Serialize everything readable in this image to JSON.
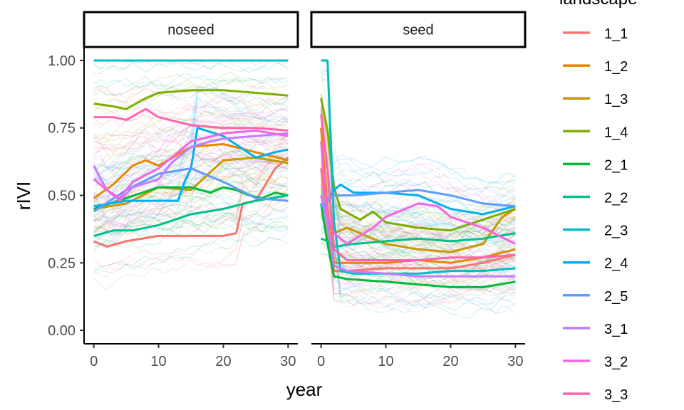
{
  "chart_data": {
    "type": "line",
    "facets": [
      "noseed",
      "seed"
    ],
    "xlabel": "year",
    "ylabel": "rIVI",
    "xlim": [
      -1.5,
      31.5
    ],
    "ylim": [
      -0.05,
      1.05
    ],
    "x_ticks": [
      0,
      10,
      20,
      30
    ],
    "y_ticks": [
      0.0,
      0.25,
      0.5,
      0.75,
      1.0
    ],
    "y_tick_labels": [
      "0.00",
      "0.25",
      "0.50",
      "0.75",
      "1.00"
    ],
    "x_tick_labels": [
      "0",
      "10",
      "20",
      "30"
    ],
    "grid": false,
    "legend_position": "right",
    "legend": {
      "title": "landscape",
      "entries": [
        {
          "name": "1_1",
          "color": "#F8766D"
        },
        {
          "name": "1_2",
          "color": "#E58700"
        },
        {
          "name": "1_3",
          "color": "#C99800"
        },
        {
          "name": "1_4",
          "color": "#7CAE00"
        },
        {
          "name": "2_1",
          "color": "#00BA38"
        },
        {
          "name": "2_2",
          "color": "#00C08B"
        },
        {
          "name": "2_3",
          "color": "#00BFC4"
        },
        {
          "name": "2_4",
          "color": "#00B0F6"
        },
        {
          "name": "2_5",
          "color": "#619CFF"
        },
        {
          "name": "3_1",
          "color": "#C77CFF"
        },
        {
          "name": "3_2",
          "color": "#F564E3"
        },
        {
          "name": "3_3",
          "color": "#FF64B0"
        }
      ]
    },
    "series": [
      {
        "name": "1_1",
        "facet": "noseed",
        "x": [
          0,
          2,
          5,
          10,
          15,
          20,
          22,
          23,
          25,
          28,
          30
        ],
        "y": [
          0.33,
          0.31,
          0.33,
          0.35,
          0.35,
          0.35,
          0.36,
          0.47,
          0.48,
          0.6,
          0.64
        ]
      },
      {
        "name": "1_2",
        "facet": "noseed",
        "x": [
          0,
          3,
          6,
          8,
          10,
          15,
          20,
          25,
          30
        ],
        "y": [
          0.49,
          0.54,
          0.61,
          0.63,
          0.61,
          0.68,
          0.69,
          0.66,
          0.63
        ]
      },
      {
        "name": "1_3",
        "facet": "noseed",
        "x": [
          0,
          5,
          10,
          15,
          20,
          25,
          30
        ],
        "y": [
          0.45,
          0.47,
          0.53,
          0.52,
          0.63,
          0.64,
          0.62
        ]
      },
      {
        "name": "1_4",
        "facet": "noseed",
        "x": [
          0,
          3,
          5,
          8,
          10,
          15,
          20,
          25,
          30
        ],
        "y": [
          0.84,
          0.83,
          0.82,
          0.86,
          0.88,
          0.89,
          0.89,
          0.88,
          0.87
        ]
      },
      {
        "name": "2_1",
        "facet": "noseed",
        "x": [
          0,
          5,
          10,
          15,
          18,
          20,
          22,
          24,
          26,
          28,
          30
        ],
        "y": [
          0.45,
          0.49,
          0.53,
          0.53,
          0.51,
          0.53,
          0.52,
          0.5,
          0.49,
          0.51,
          0.5
        ]
      },
      {
        "name": "2_2",
        "facet": "noseed",
        "x": [
          0,
          3,
          6,
          10,
          15,
          20,
          25,
          30
        ],
        "y": [
          0.35,
          0.37,
          0.37,
          0.39,
          0.43,
          0.45,
          0.48,
          0.5
        ]
      },
      {
        "name": "2_3",
        "facet": "noseed",
        "x": [
          0,
          30
        ],
        "y": [
          1.0,
          1.0
        ]
      },
      {
        "name": "2_4",
        "facet": "noseed",
        "x": [
          0,
          5,
          10,
          13,
          14,
          15,
          16,
          20,
          25,
          28,
          30
        ],
        "y": [
          0.46,
          0.48,
          0.48,
          0.48,
          0.55,
          0.6,
          0.75,
          0.72,
          0.64,
          0.66,
          0.67
        ]
      },
      {
        "name": "2_5",
        "facet": "noseed",
        "x": [
          0,
          5,
          10,
          15,
          20,
          25,
          30
        ],
        "y": [
          0.44,
          0.52,
          0.58,
          0.6,
          0.55,
          0.49,
          0.48
        ]
      },
      {
        "name": "3_1",
        "facet": "noseed",
        "x": [
          0,
          2,
          4,
          6,
          10,
          12,
          15,
          18,
          20,
          25,
          30
        ],
        "y": [
          0.61,
          0.52,
          0.48,
          0.53,
          0.56,
          0.62,
          0.68,
          0.7,
          0.71,
          0.72,
          0.73
        ]
      },
      {
        "name": "3_2",
        "facet": "noseed",
        "x": [
          0,
          2,
          4,
          6,
          10,
          15,
          20,
          25,
          30
        ],
        "y": [
          0.56,
          0.52,
          0.49,
          0.55,
          0.6,
          0.7,
          0.73,
          0.74,
          0.72
        ]
      },
      {
        "name": "3_3",
        "facet": "noseed",
        "x": [
          0,
          3,
          5,
          8,
          10,
          15,
          20,
          25,
          30
        ],
        "y": [
          0.79,
          0.79,
          0.78,
          0.82,
          0.79,
          0.76,
          0.75,
          0.75,
          0.74
        ]
      },
      {
        "name": "1_1",
        "facet": "seed",
        "x": [
          0,
          1,
          2,
          4,
          10,
          15,
          20,
          25,
          30
        ],
        "y": [
          0.6,
          0.4,
          0.22,
          0.22,
          0.23,
          0.23,
          0.23,
          0.25,
          0.28
        ]
      },
      {
        "name": "1_2",
        "facet": "seed",
        "x": [
          0,
          1,
          2,
          4,
          10,
          15,
          20,
          25,
          30
        ],
        "y": [
          0.75,
          0.45,
          0.25,
          0.25,
          0.25,
          0.26,
          0.25,
          0.27,
          0.3
        ]
      },
      {
        "name": "1_3",
        "facet": "seed",
        "x": [
          0,
          1,
          2,
          4,
          8,
          10,
          15,
          20,
          25,
          28,
          30
        ],
        "y": [
          0.5,
          0.42,
          0.36,
          0.38,
          0.34,
          0.32,
          0.3,
          0.29,
          0.32,
          0.42,
          0.45
        ]
      },
      {
        "name": "1_4",
        "facet": "seed",
        "x": [
          0,
          1,
          2,
          3,
          6,
          8,
          10,
          15,
          20,
          25,
          30
        ],
        "y": [
          0.86,
          0.74,
          0.53,
          0.45,
          0.41,
          0.44,
          0.4,
          0.38,
          0.37,
          0.41,
          0.45
        ]
      },
      {
        "name": "2_1",
        "facet": "seed",
        "x": [
          0,
          1,
          2,
          4,
          10,
          15,
          20,
          25,
          30
        ],
        "y": [
          0.47,
          0.32,
          0.2,
          0.19,
          0.18,
          0.17,
          0.16,
          0.16,
          0.18
        ]
      },
      {
        "name": "2_2",
        "facet": "seed",
        "x": [
          0,
          1,
          2,
          5,
          10,
          15,
          20,
          25,
          30
        ],
        "y": [
          0.34,
          0.33,
          0.31,
          0.32,
          0.33,
          0.34,
          0.33,
          0.34,
          0.36
        ]
      },
      {
        "name": "2_3",
        "facet": "seed",
        "x": [
          0,
          1,
          2,
          3,
          5,
          10,
          15,
          20,
          25,
          30
        ],
        "y": [
          1.0,
          1.0,
          0.4,
          0.22,
          0.21,
          0.21,
          0.21,
          0.22,
          0.22,
          0.23
        ]
      },
      {
        "name": "2_4",
        "facet": "seed",
        "x": [
          0,
          1,
          2,
          3,
          5,
          10,
          15,
          20,
          25,
          30
        ],
        "y": [
          0.45,
          0.48,
          0.52,
          0.54,
          0.51,
          0.51,
          0.5,
          0.45,
          0.43,
          0.46
        ]
      },
      {
        "name": "2_5",
        "facet": "seed",
        "x": [
          0,
          1,
          2,
          5,
          10,
          15,
          20,
          25,
          30
        ],
        "y": [
          0.46,
          0.48,
          0.5,
          0.5,
          0.51,
          0.52,
          0.5,
          0.47,
          0.46
        ]
      },
      {
        "name": "3_1",
        "facet": "seed",
        "x": [
          0,
          1,
          2,
          4,
          10,
          15,
          20,
          25,
          30
        ],
        "y": [
          0.5,
          0.4,
          0.24,
          0.22,
          0.21,
          0.2,
          0.2,
          0.2,
          0.2
        ]
      },
      {
        "name": "3_2",
        "facet": "seed",
        "x": [
          0,
          1,
          2,
          4,
          8,
          10,
          15,
          18,
          20,
          25,
          30
        ],
        "y": [
          0.7,
          0.42,
          0.36,
          0.32,
          0.38,
          0.42,
          0.47,
          0.46,
          0.42,
          0.38,
          0.32
        ]
      },
      {
        "name": "3_3",
        "facet": "seed",
        "x": [
          0,
          1,
          2,
          4,
          10,
          15,
          20,
          25,
          30
        ],
        "y": [
          0.8,
          0.6,
          0.3,
          0.26,
          0.26,
          0.26,
          0.27,
          0.27,
          0.28
        ]
      }
    ]
  }
}
